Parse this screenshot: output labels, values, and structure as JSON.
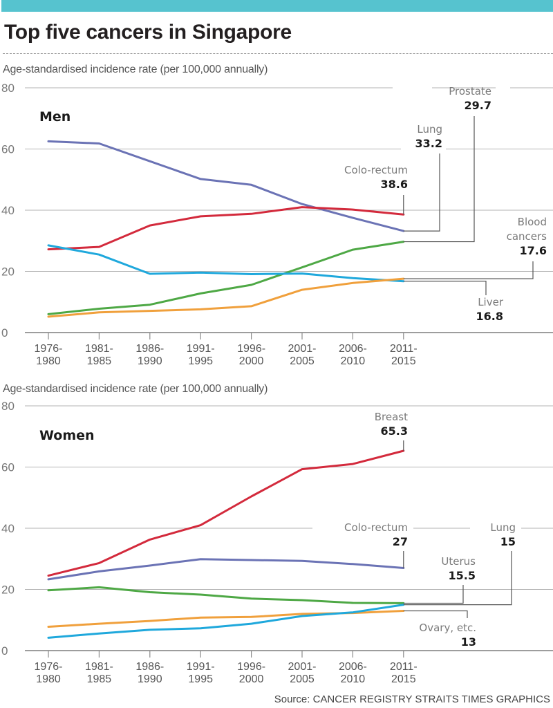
{
  "header": {
    "title": "Top five cancers in Singapore",
    "accent_color": "#56c3cf"
  },
  "footer": {
    "source": "Source: CANCER REGISTRY   STRAITS TIMES GRAPHICS"
  },
  "chart_data": [
    {
      "type": "line",
      "panel": "Men",
      "title": "Men",
      "ylabel": "Age-standardised incidence rate (per 100,000 annually)",
      "xlabel": "",
      "ylim": [
        0,
        80
      ],
      "yticks": [
        0,
        20,
        40,
        60,
        80
      ],
      "grid": true,
      "categories": [
        "1976-\n1980",
        "1981-\n1985",
        "1986-\n1990",
        "1991-\n1995",
        "1996-\n2000",
        "2001-\n2005",
        "2006-\n2010",
        "2011-\n2015"
      ],
      "category_lines": [
        [
          "1976-",
          "1980"
        ],
        [
          "1981-",
          "1985"
        ],
        [
          "1986-",
          "1990"
        ],
        [
          "1991-",
          "1995"
        ],
        [
          "1996-",
          "2000"
        ],
        [
          "2001-",
          "2005"
        ],
        [
          "2006-",
          "2010"
        ],
        [
          "2011-",
          "2015"
        ]
      ],
      "series": [
        {
          "name": "Lung",
          "color": "#6b73b5",
          "values": [
            62.5,
            61.8,
            56.0,
            50.2,
            48.3,
            42.0,
            37.5,
            33.2
          ],
          "label_name": "Lung",
          "label_value": "33.2"
        },
        {
          "name": "Colo-rectum",
          "color": "#d32a3c",
          "values": [
            27.2,
            28.0,
            35.0,
            38.0,
            38.8,
            41.0,
            40.2,
            38.6
          ],
          "label_name": "Colo-rectum",
          "label_value": "38.6"
        },
        {
          "name": "Prostate",
          "color": "#4ea845",
          "values": [
            6.0,
            7.8,
            9.1,
            12.8,
            15.6,
            21.3,
            27.1,
            29.7
          ],
          "label_name": "Prostate",
          "label_value": "29.7"
        },
        {
          "name": "Liver",
          "color": "#1fa8dc",
          "values": [
            28.5,
            25.5,
            19.2,
            19.6,
            19.1,
            19.3,
            17.8,
            16.8
          ],
          "label_name": "Liver",
          "label_value": "16.8"
        },
        {
          "name": "Blood cancers",
          "color": "#f0a03c",
          "values": [
            5.2,
            6.6,
            7.1,
            7.6,
            8.6,
            14.0,
            16.2,
            17.6
          ],
          "label_name": "Blood\ncancers",
          "label_value": "17.6"
        }
      ]
    },
    {
      "type": "line",
      "panel": "Women",
      "title": "Women",
      "ylabel": "Age-standardised incidence rate (per 100,000  annually)",
      "xlabel": "",
      "ylim": [
        0,
        80
      ],
      "yticks": [
        0,
        20,
        40,
        60,
        80
      ],
      "grid": true,
      "categories": [
        "1976-\n1980",
        "1981-\n1985",
        "1986-\n1990",
        "1991-\n1995",
        "1996-\n2000",
        "2001-\n2005",
        "2006-\n2010",
        "2011-\n2015"
      ],
      "category_lines": [
        [
          "1976-",
          "1980"
        ],
        [
          "1981-",
          "1985"
        ],
        [
          "1986-",
          "1990"
        ],
        [
          "1991-",
          "1995"
        ],
        [
          "1996-",
          "2000"
        ],
        [
          "2001-",
          "2005"
        ],
        [
          "2006-",
          "2010"
        ],
        [
          "2011-",
          "2015"
        ]
      ],
      "series": [
        {
          "name": "Breast",
          "color": "#d32a3c",
          "values": [
            24.5,
            28.6,
            36.3,
            41.0,
            50.4,
            59.3,
            61.0,
            65.3
          ],
          "label_name": "Breast",
          "label_value": "65.3"
        },
        {
          "name": "Colo-rectum",
          "color": "#6b73b5",
          "values": [
            23.3,
            25.9,
            27.8,
            29.9,
            29.6,
            29.3,
            28.3,
            27.0
          ],
          "label_name": "Colo-rectum",
          "label_value": "27"
        },
        {
          "name": "Uterus",
          "color": "#4ea845",
          "values": [
            19.7,
            20.7,
            19.1,
            18.3,
            17.0,
            16.5,
            15.6,
            15.5
          ],
          "label_name": "Uterus",
          "label_value": "15.5"
        },
        {
          "name": "Ovary, etc.",
          "color": "#f0a03c",
          "values": [
            7.8,
            8.8,
            9.7,
            10.8,
            11.0,
            12.0,
            12.3,
            13.0
          ],
          "label_name": "Ovary, etc.",
          "label_value": "13"
        },
        {
          "name": "Lung",
          "color": "#1fa8dc",
          "values": [
            4.2,
            5.6,
            6.8,
            7.3,
            8.8,
            11.3,
            12.5,
            15.0
          ],
          "label_name": "Lung",
          "label_value": "15"
        }
      ]
    }
  ]
}
